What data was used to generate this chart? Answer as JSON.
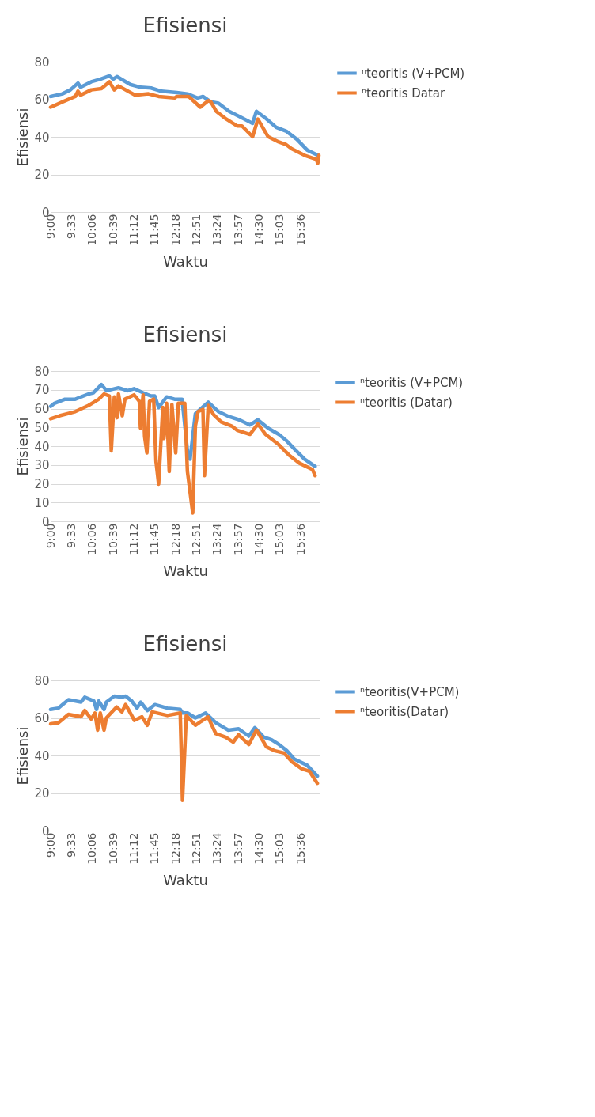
{
  "chart_data": [
    {
      "type": "line",
      "title": "Efisiensi",
      "xlabel": "Waktu",
      "ylabel": "Efisiensi",
      "ylim": [
        0,
        80
      ],
      "yticks": [
        0,
        20,
        40,
        60,
        80
      ],
      "xlim": [
        9,
        16.1
      ],
      "xticks": [
        {
          "value": 9,
          "label": "9:00"
        },
        {
          "value": 9.55,
          "label": "9:33"
        },
        {
          "value": 10.1,
          "label": "10:06"
        },
        {
          "value": 10.65,
          "label": "10:39"
        },
        {
          "value": 11.2,
          "label": "11:12"
        },
        {
          "value": 11.75,
          "label": "11:45"
        },
        {
          "value": 12.3,
          "label": "12:18"
        },
        {
          "value": 12.85,
          "label": "12:51"
        },
        {
          "value": 13.4,
          "label": "13:24"
        },
        {
          "value": 13.95,
          "label": "13:57"
        },
        {
          "value": 14.5,
          "label": "14:30"
        },
        {
          "value": 15.05,
          "label": "15:03"
        },
        {
          "value": 15.6,
          "label": "15:36"
        }
      ],
      "grid": "y",
      "legend": "right",
      "marker": "none",
      "line_style": "solid",
      "series": [
        {
          "name": "ⁿteoritis (V+PCM)",
          "color": "#5b9bd5",
          "x": [
            9,
            9.31,
            9.52,
            9.72,
            9.79,
            10.07,
            10.31,
            10.55,
            10.65,
            10.75,
            11.1,
            11.37,
            11.65,
            11.92,
            12.33,
            12.61,
            12.88,
            13.02,
            13.23,
            13.43,
            13.71,
            13.98,
            14.33,
            14.43,
            14.67,
            14.95,
            15.22,
            15.5,
            15.77,
            16.05
          ],
          "values": [
            61.5,
            62.9,
            65,
            68.6,
            66.4,
            69.3,
            70.7,
            72.5,
            70.7,
            72.1,
            67.9,
            66.4,
            66,
            64.3,
            63.6,
            62.9,
            60.7,
            61.5,
            58.6,
            57.9,
            53.6,
            50.8,
            47.2,
            53.6,
            50,
            45.1,
            43,
            38.7,
            33,
            30.2
          ]
        },
        {
          "name": "ⁿteoritis Datar",
          "color": "#ed7d31",
          "x": [
            9,
            9.31,
            9.65,
            9.72,
            9.79,
            10.07,
            10.34,
            10.55,
            10.68,
            10.79,
            11.23,
            11.58,
            11.85,
            12.27,
            12.33,
            12.64,
            12.95,
            13.16,
            13.23,
            13.37,
            13.64,
            13.92,
            14.05,
            14.33,
            14.47,
            14.74,
            15.02,
            15.22,
            15.36,
            15.7,
            16.01,
            16.05,
            16.08
          ],
          "values": [
            55.8,
            58.6,
            61.5,
            64.3,
            62.2,
            65,
            65.7,
            69.3,
            65,
            67.1,
            62.2,
            62.9,
            61.5,
            60.7,
            61.5,
            61.5,
            55.8,
            59.3,
            58.6,
            53.6,
            49.4,
            45.8,
            45.8,
            40.1,
            49.4,
            40.1,
            37.3,
            35.8,
            33.7,
            30.2,
            28.1,
            25.9,
            30.2
          ]
        }
      ]
    },
    {
      "type": "line",
      "title": "Efisiensi",
      "xlabel": "Waktu",
      "ylabel": "Efisiensi",
      "ylim": [
        0,
        80
      ],
      "yticks": [
        0,
        10,
        20,
        30,
        40,
        50,
        60,
        70,
        80
      ],
      "xlim": [
        9,
        16.1
      ],
      "xticks": [
        {
          "value": 9,
          "label": "9:00"
        },
        {
          "value": 9.55,
          "label": "9:33"
        },
        {
          "value": 10.1,
          "label": "10:06"
        },
        {
          "value": 10.65,
          "label": "10:39"
        },
        {
          "value": 11.2,
          "label": "11:12"
        },
        {
          "value": 11.75,
          "label": "11:45"
        },
        {
          "value": 12.3,
          "label": "12:18"
        },
        {
          "value": 12.85,
          "label": "12:51"
        },
        {
          "value": 13.4,
          "label": "13:24"
        },
        {
          "value": 13.95,
          "label": "13:57"
        },
        {
          "value": 14.5,
          "label": "14:30"
        },
        {
          "value": 15.05,
          "label": "15:03"
        },
        {
          "value": 15.6,
          "label": "15:36"
        }
      ],
      "grid": "y",
      "legend": "right",
      "marker": "none",
      "line_style": "solid",
      "series": [
        {
          "name": "ⁿteoritis (V+PCM)",
          "color": "#5b9bd5",
          "x": [
            9,
            9.1,
            9.38,
            9.65,
            10,
            10.13,
            10.34,
            10.48,
            10.79,
            11.03,
            11.2,
            11.44,
            11.65,
            11.75,
            11.85,
            12.06,
            12.27,
            12.47,
            12.61,
            12.68,
            12.82,
            13.16,
            13.43,
            13.71,
            13.98,
            14.26,
            14.47,
            14.74,
            15.02,
            15.22,
            15.43,
            15.7,
            15.98
          ],
          "values": [
            61.2,
            62.8,
            65,
            65,
            67.8,
            68.4,
            72.8,
            69.5,
            71.1,
            69.5,
            70.6,
            68.4,
            66.7,
            66.7,
            60.6,
            66.2,
            65,
            65,
            37.5,
            33.1,
            57.3,
            63.4,
            58.4,
            55.7,
            54,
            51.3,
            54,
            49.6,
            46.3,
            43,
            38.6,
            33.1,
            29.2
          ]
        },
        {
          "name": "ⁿteoritis (Datar)",
          "color": "#ed7d31",
          "x": [
            9,
            9.24,
            9.65,
            10,
            10.27,
            10.41,
            10.55,
            10.6,
            10.68,
            10.75,
            10.79,
            10.89,
            10.96,
            11.2,
            11.34,
            11.37,
            11.44,
            11.48,
            11.54,
            11.61,
            11.72,
            11.78,
            11.85,
            11.96,
            11.99,
            12.06,
            12.13,
            12.2,
            12.3,
            12.37,
            12.54,
            12.61,
            12.75,
            12.82,
            12.89,
            13.02,
            13.06,
            13.16,
            13.3,
            13.5,
            13.78,
            13.92,
            14.26,
            14.47,
            14.67,
            15.02,
            15.29,
            15.57,
            15.91,
            15.98
          ],
          "values": [
            54.6,
            56.2,
            58.4,
            61.7,
            65,
            67.8,
            66.7,
            37.5,
            66.2,
            55.1,
            67.8,
            56.2,
            65,
            67.3,
            63.9,
            49.6,
            67.3,
            45.2,
            36.4,
            63.9,
            65,
            32,
            19.8,
            60.6,
            44.1,
            62.8,
            26.5,
            62.2,
            36.4,
            62.8,
            62.8,
            26.5,
            4.4,
            50.7,
            58.4,
            59.5,
            24.3,
            61.7,
            56.8,
            52.9,
            50.7,
            48.5,
            46.3,
            51.8,
            46.3,
            40.8,
            35.3,
            30.9,
            27.6,
            24.3
          ]
        }
      ]
    },
    {
      "type": "line",
      "title": "Efisiensi",
      "xlabel": "Waktu",
      "ylabel": "Efisiensi",
      "ylim": [
        0,
        80
      ],
      "yticks": [
        0,
        20,
        40,
        60,
        80
      ],
      "xlim": [
        9,
        16.1
      ],
      "xticks": [
        {
          "value": 9,
          "label": "9:00"
        },
        {
          "value": 9.55,
          "label": "9:33"
        },
        {
          "value": 10.1,
          "label": "10:06"
        },
        {
          "value": 10.65,
          "label": "10:39"
        },
        {
          "value": 11.2,
          "label": "11:12"
        },
        {
          "value": 11.75,
          "label": "11:45"
        },
        {
          "value": 12.3,
          "label": "12:18"
        },
        {
          "value": 12.85,
          "label": "12:51"
        },
        {
          "value": 13.4,
          "label": "13:24"
        },
        {
          "value": 13.95,
          "label": "13:57"
        },
        {
          "value": 14.5,
          "label": "14:30"
        },
        {
          "value": 15.05,
          "label": "15:03"
        },
        {
          "value": 15.6,
          "label": "15:36"
        }
      ],
      "grid": "y",
      "legend": "right",
      "marker": "none",
      "line_style": "solid",
      "series": [
        {
          "name": "ⁿteoritis(V+PCM)",
          "color": "#5b9bd5",
          "x": [
            9,
            9.2,
            9.47,
            9.8,
            9.9,
            10.14,
            10.21,
            10.27,
            10.41,
            10.47,
            10.68,
            10.88,
            10.98,
            11.14,
            11.28,
            11.38,
            11.55,
            11.75,
            12.08,
            12.42,
            12.48,
            12.62,
            12.82,
            13.09,
            13.36,
            13.69,
            13.96,
            14.23,
            14.39,
            14.63,
            14.83,
            15.03,
            15.23,
            15.43,
            15.77,
            16.04
          ],
          "values": [
            64.5,
            65.2,
            69.7,
            68.4,
            71,
            69,
            64.5,
            69,
            64.5,
            68.4,
            71.6,
            71,
            71.6,
            69,
            65.2,
            68.4,
            63.9,
            67.1,
            65.2,
            64.5,
            62.6,
            62.6,
            60,
            62.6,
            57.4,
            53.5,
            54.2,
            50.3,
            54.8,
            49.7,
            48.4,
            45.8,
            42.6,
            38.1,
            34.8,
            29
          ]
        },
        {
          "name": "ⁿteoritis(Datar)",
          "color": "#ed7d31",
          "x": [
            9,
            9.2,
            9.47,
            9.8,
            9.9,
            10.07,
            10.17,
            10.24,
            10.31,
            10.41,
            10.47,
            10.74,
            10.88,
            10.98,
            11.21,
            11.41,
            11.55,
            11.68,
            12.08,
            12.42,
            12.48,
            12.58,
            12.82,
            13.15,
            13.36,
            13.62,
            13.82,
            13.96,
            14.23,
            14.43,
            14.7,
            14.9,
            15.16,
            15.36,
            15.63,
            15.83,
            16.04
          ],
          "values": [
            56.8,
            57.4,
            61.9,
            60.6,
            63.9,
            59.4,
            62.6,
            53.5,
            62.6,
            53.5,
            60,
            65.8,
            63.2,
            67.1,
            58.7,
            60.6,
            56.1,
            63.2,
            61.3,
            62.6,
            16.1,
            61.3,
            56.1,
            60.6,
            51.6,
            49.7,
            47.1,
            51,
            45.8,
            53.5,
            44.5,
            42.6,
            41.3,
            36.8,
            32.9,
            31.6,
            25.2
          ]
        }
      ]
    }
  ]
}
